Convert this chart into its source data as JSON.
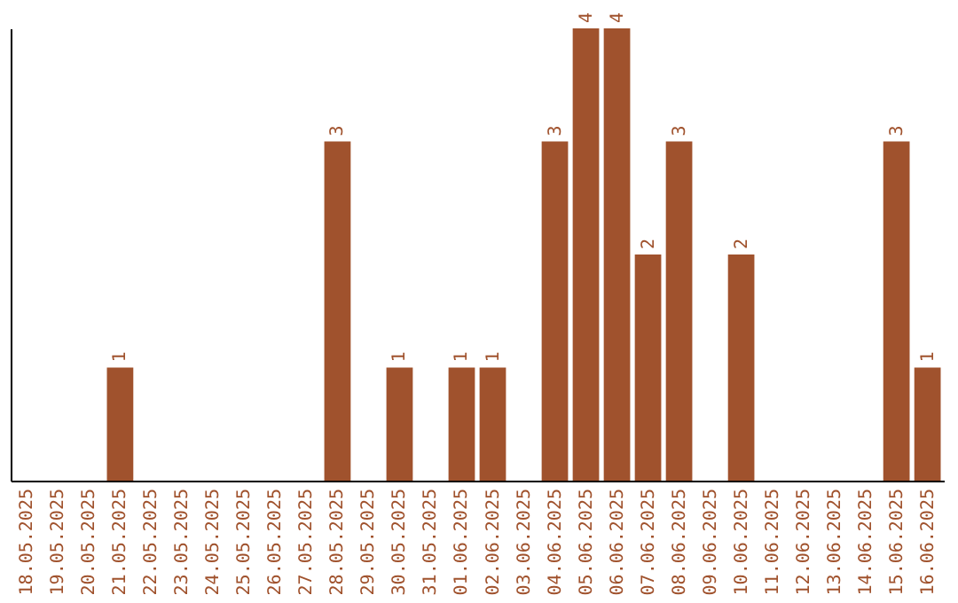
{
  "chart_data": {
    "type": "bar",
    "categories": [
      "18.05.2025",
      "19.05.2025",
      "20.05.2025",
      "21.05.2025",
      "22.05.2025",
      "23.05.2025",
      "24.05.2025",
      "25.05.2025",
      "26.05.2025",
      "27.05.2025",
      "28.05.2025",
      "29.05.2025",
      "30.05.2025",
      "31.05.2025",
      "01.06.2025",
      "02.06.2025",
      "03.06.2025",
      "04.06.2025",
      "05.06.2025",
      "06.06.2025",
      "07.06.2025",
      "08.06.2025",
      "09.06.2025",
      "10.06.2025",
      "11.06.2025",
      "12.06.2025",
      "13.06.2025",
      "14.06.2025",
      "15.06.2025",
      "16.06.2025"
    ],
    "values": [
      0,
      0,
      0,
      1,
      0,
      0,
      0,
      0,
      0,
      0,
      3,
      0,
      1,
      0,
      1,
      1,
      0,
      3,
      4,
      4,
      2,
      3,
      0,
      2,
      0,
      0,
      0,
      0,
      3,
      1
    ],
    "value_labels": [
      null,
      null,
      null,
      "1",
      null,
      null,
      null,
      null,
      null,
      null,
      "3",
      null,
      "1",
      null,
      "1",
      "1",
      null,
      "3",
      "4",
      "4",
      "2",
      "3",
      null,
      "2",
      null,
      null,
      null,
      null,
      "3",
      "1"
    ],
    "color": "#a0522d",
    "tick_labels": "x",
    "grid": false
  }
}
